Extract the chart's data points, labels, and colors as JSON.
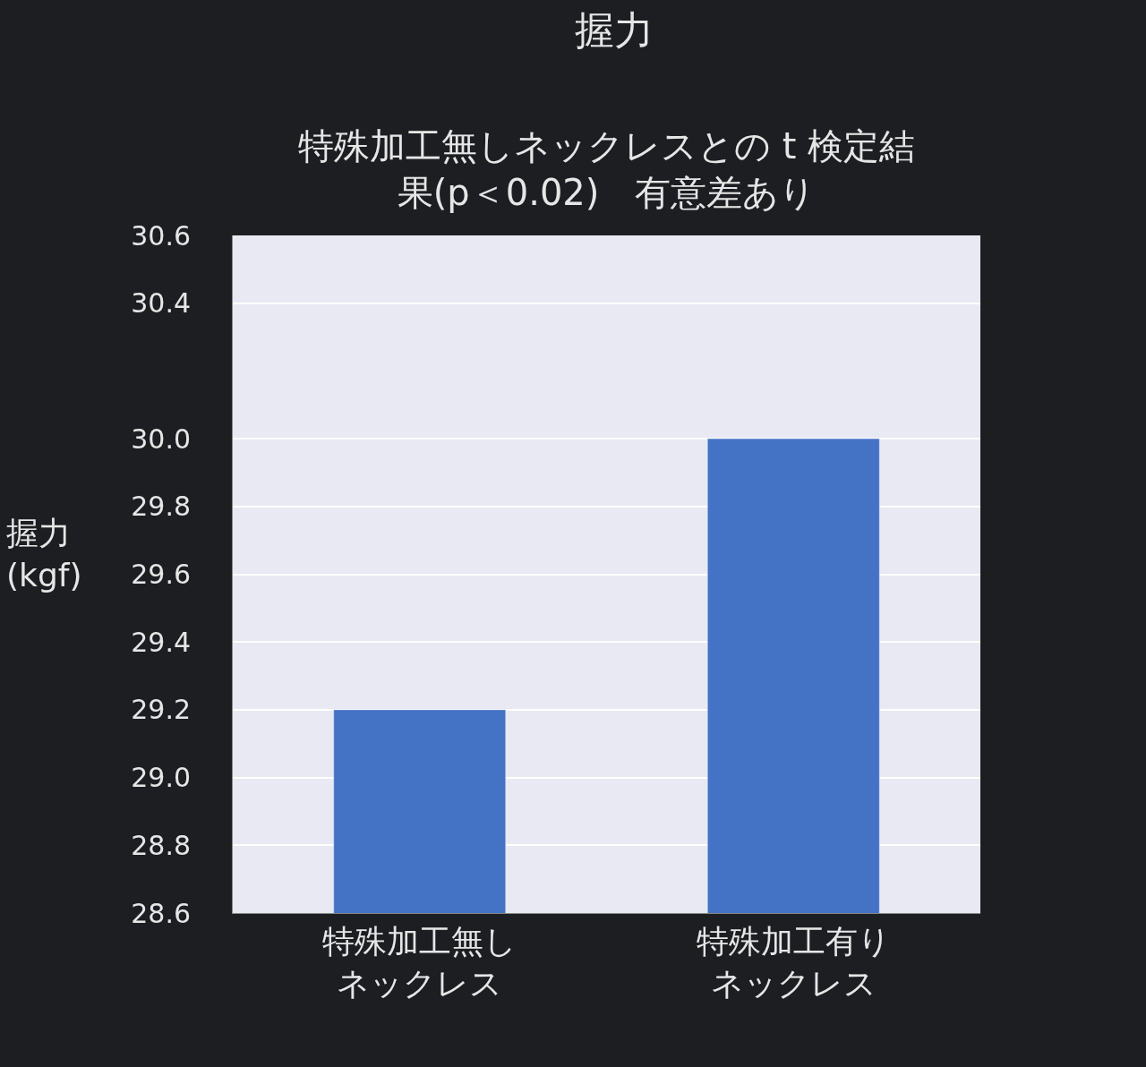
{
  "chart_data": {
    "type": "bar",
    "title": "握力",
    "subtitle": "特殊加工無しネックレスとの t 検定結果(p＜0.02)　有意差あり",
    "ylabel": "握力\n(kgf)",
    "categories": [
      "特殊加工無しネックレス",
      "特殊加工有りネックレス"
    ],
    "values": [
      29.2,
      30.0
    ],
    "color": "#4472c4",
    "ylim": [
      28.6,
      30.6
    ],
    "yticks": [
      28.6,
      28.8,
      {
        "value": 29.0,
        "label": "29.0"
      },
      29.2,
      29.4,
      29.6,
      29.8,
      {
        "value": 30.0,
        "label": "30.0"
      },
      30.4,
      30.6
    ],
    "grid": "y",
    "legend": false
  }
}
